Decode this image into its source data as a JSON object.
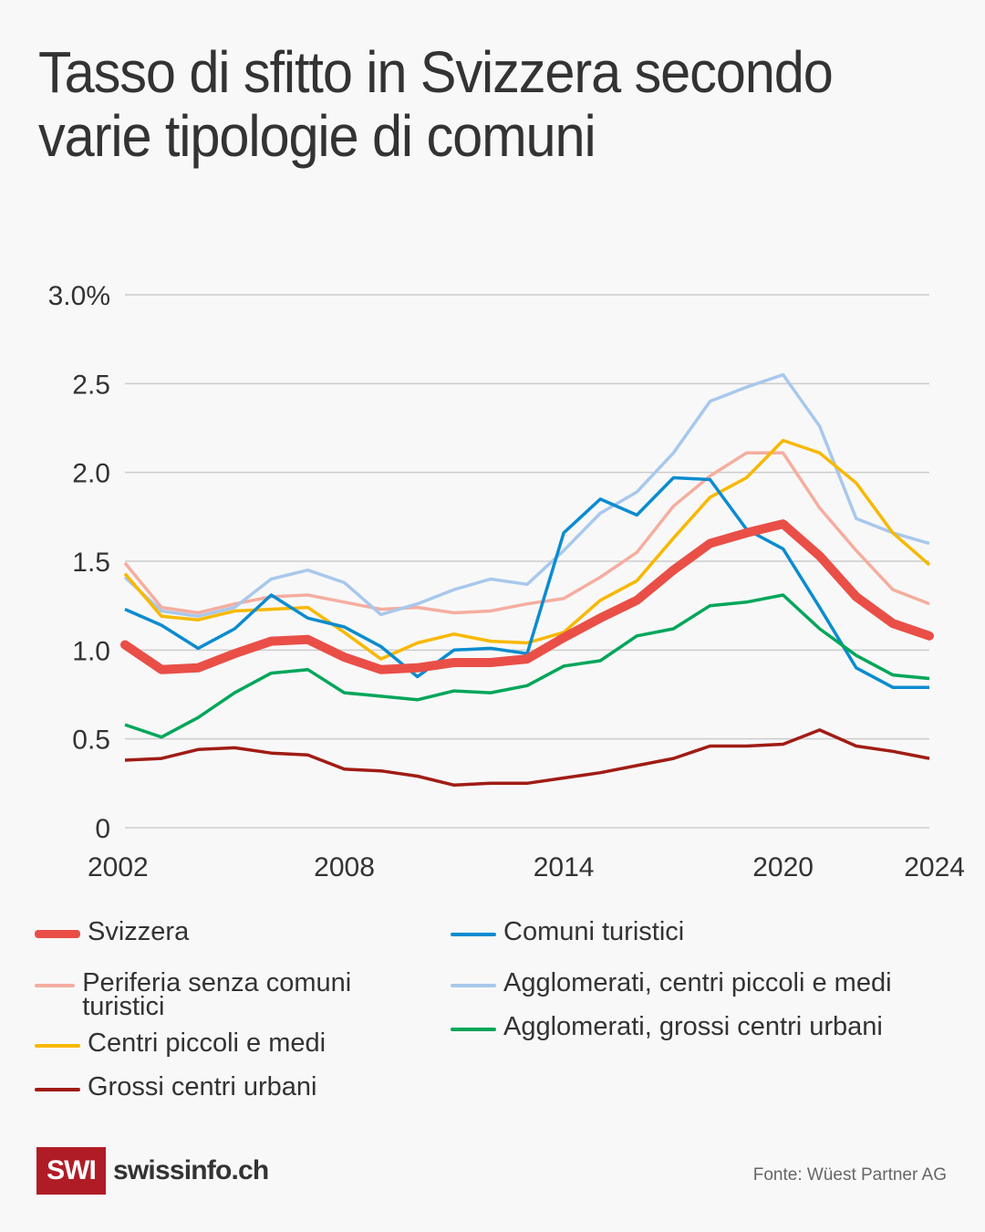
{
  "header": {
    "title": "Tasso di sfitto in Svizzera secondo varie tipologie di comuni"
  },
  "footer": {
    "logo_mark": "SWI",
    "logo_text": "swissinfo.ch",
    "source": "Fonte: Wüest Partner AG"
  },
  "chart_data": {
    "type": "line",
    "title": "Tasso di sfitto in Svizzera secondo varie tipologie di comuni",
    "xlabel": "",
    "ylabel": "",
    "x": [
      2002,
      2003,
      2004,
      2005,
      2006,
      2007,
      2008,
      2009,
      2010,
      2011,
      2012,
      2013,
      2014,
      2015,
      2016,
      2017,
      2018,
      2019,
      2020,
      2021,
      2022,
      2023,
      2024
    ],
    "xticks": [
      "2002",
      "2008",
      "2014",
      "2020",
      "2024"
    ],
    "xtick_values": [
      2002,
      2008,
      2014,
      2020,
      2024
    ],
    "yticks": [
      "0",
      "0.5",
      "1.0",
      "1.5",
      "2.0",
      "2.5",
      "3.0%"
    ],
    "ytick_values": [
      0,
      0.5,
      1.0,
      1.5,
      2.0,
      2.5,
      3.0
    ],
    "ylim": [
      0,
      3.0
    ],
    "grid": true,
    "legend_position": "bottom",
    "series": [
      {
        "name": "Periferia senza comuni turistici",
        "color": "#f5ada0",
        "emphasis": false,
        "values": [
          1.49,
          1.24,
          1.21,
          1.26,
          1.3,
          1.31,
          1.27,
          1.23,
          1.24,
          1.21,
          1.22,
          1.26,
          1.29,
          1.41,
          1.55,
          1.81,
          1.98,
          2.11,
          2.11,
          1.8,
          1.56,
          1.34,
          1.26
        ]
      },
      {
        "name": "Agglomerati, centri piccoli e medi",
        "color": "#a8c8ec",
        "emphasis": false,
        "values": [
          1.41,
          1.22,
          1.19,
          1.24,
          1.4,
          1.45,
          1.38,
          1.2,
          1.26,
          1.34,
          1.4,
          1.37,
          1.56,
          1.77,
          1.89,
          2.11,
          2.4,
          2.48,
          2.55,
          2.26,
          1.74,
          1.66,
          1.6
        ]
      },
      {
        "name": "Centri piccoli e medi",
        "color": "#f8b800",
        "emphasis": false,
        "values": [
          1.43,
          1.19,
          1.17,
          1.22,
          1.23,
          1.24,
          1.1,
          0.95,
          1.04,
          1.09,
          1.05,
          1.04,
          1.1,
          1.28,
          1.39,
          1.63,
          1.86,
          1.97,
          2.18,
          2.11,
          1.94,
          1.66,
          1.48
        ]
      },
      {
        "name": "Comuni turistici",
        "color": "#0a8ccf",
        "emphasis": false,
        "values": [
          1.23,
          1.14,
          1.01,
          1.12,
          1.31,
          1.18,
          1.13,
          1.02,
          0.85,
          1.0,
          1.01,
          0.98,
          1.66,
          1.85,
          1.76,
          1.97,
          1.96,
          1.68,
          1.57,
          1.24,
          0.9,
          0.79,
          0.79
        ]
      },
      {
        "name": "Agglomerati, grossi centri urbani",
        "color": "#00a65a",
        "emphasis": false,
        "values": [
          0.58,
          0.51,
          0.62,
          0.76,
          0.87,
          0.89,
          0.76,
          0.74,
          0.72,
          0.77,
          0.76,
          0.8,
          0.91,
          0.94,
          1.08,
          1.12,
          1.25,
          1.27,
          1.31,
          1.12,
          0.97,
          0.86,
          0.84
        ]
      },
      {
        "name": "Grossi centri urbani",
        "color": "#a01c14",
        "emphasis": false,
        "values": [
          0.38,
          0.39,
          0.44,
          0.45,
          0.42,
          0.41,
          0.33,
          0.32,
          0.29,
          0.24,
          0.25,
          0.25,
          0.28,
          0.31,
          0.35,
          0.39,
          0.46,
          0.46,
          0.47,
          0.55,
          0.46,
          0.43,
          0.39
        ]
      },
      {
        "name": "Svizzera",
        "color": "#e94f47",
        "emphasis": true,
        "values": [
          1.03,
          0.89,
          0.9,
          0.98,
          1.05,
          1.06,
          0.96,
          0.89,
          0.9,
          0.93,
          0.93,
          0.95,
          1.07,
          1.18,
          1.28,
          1.45,
          1.6,
          1.66,
          1.71,
          1.53,
          1.3,
          1.15,
          1.08
        ]
      }
    ],
    "legend": [
      {
        "name": "Svizzera",
        "color": "#e94f47",
        "emphasis": true,
        "column": 0,
        "row": 0
      },
      {
        "name": "Periferia senza comuni turistici",
        "color": "#f5ada0",
        "emphasis": false,
        "column": 0,
        "row": 1
      },
      {
        "name": "Centri piccoli e medi",
        "color": "#f8b800",
        "emphasis": false,
        "column": 0,
        "row": 2
      },
      {
        "name": "Grossi centri urbani",
        "color": "#a01c14",
        "emphasis": false,
        "column": 0,
        "row": 3
      },
      {
        "name": "Comuni turistici",
        "color": "#0a8ccf",
        "emphasis": false,
        "column": 1,
        "row": 0
      },
      {
        "name": "Agglomerati, centri piccoli e medi",
        "color": "#a8c8ec",
        "emphasis": false,
        "column": 1,
        "row": 1
      },
      {
        "name": "Agglomerati, grossi centri urbani",
        "color": "#00a65a",
        "emphasis": false,
        "column": 1,
        "row": 2
      }
    ]
  }
}
